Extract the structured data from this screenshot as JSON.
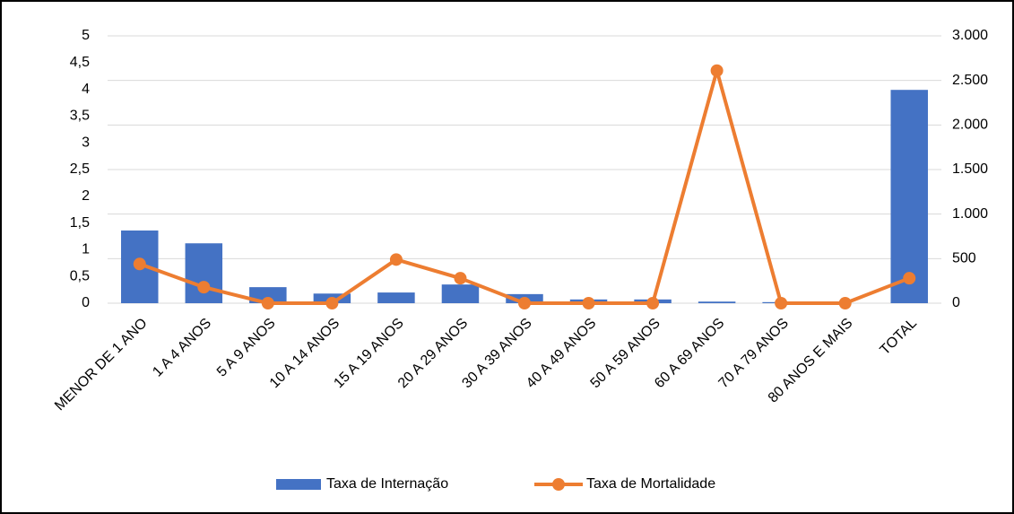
{
  "chart_data": {
    "type": "bar_line",
    "categories": [
      "MENOR DE 1 ANO",
      "1 A 4 ANOS",
      "5 A 9 ANOS",
      "10 A 14 ANOS",
      "15 A 19 ANOS",
      "20 A 29 ANOS",
      "30 A 39 ANOS",
      "40 A 49 ANOS",
      "50 A 59 ANOS",
      "60 A 69 ANOS",
      "70 A 79 ANOS",
      "80 ANOS E MAIS",
      "TOTAL"
    ],
    "series": [
      {
        "name": "Taxa de Internação",
        "type": "bar",
        "color": "#4472c4",
        "values": [
          1.36,
          1.12,
          0.3,
          0.18,
          0.2,
          0.35,
          0.17,
          0.07,
          0.07,
          0.03,
          0.02,
          0,
          3.99
        ]
      },
      {
        "name": "Taxa de Mortalidade",
        "type": "line",
        "axis": "y2",
        "color": "#ed7d31",
        "values": [
          440,
          180,
          0,
          0,
          490,
          280,
          0,
          0,
          0,
          2610,
          0,
          0,
          280
        ]
      }
    ],
    "ylim": [
      0,
      5
    ],
    "yticks": [
      0,
      {
        "value": 0.5,
        "label": "0,5"
      },
      1,
      {
        "value": 1.5,
        "label": "1,5"
      },
      2,
      {
        "value": 2.5,
        "label": "2,5"
      },
      3,
      {
        "value": 3.5,
        "label": "3,5"
      },
      4,
      {
        "value": 4.5,
        "label": "4,5"
      },
      5
    ],
    "y2lim": [
      0,
      3000
    ],
    "y2ticks": [
      0,
      500,
      {
        "value": 1000,
        "label": "1.000"
      },
      {
        "value": 1500,
        "label": "1.500"
      },
      {
        "value": 2000,
        "label": "2.000"
      },
      {
        "value": 2500,
        "label": "2.500"
      },
      {
        "value": 3000,
        "label": "3.000"
      }
    ],
    "grid": true,
    "legend": "bottom"
  }
}
